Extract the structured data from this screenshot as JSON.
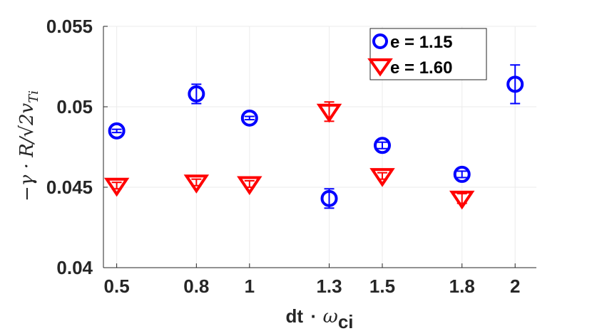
{
  "chart_data": {
    "type": "scatter",
    "x": [
      0.5,
      0.8,
      1,
      1.3,
      1.5,
      1.8,
      2
    ],
    "xticks": [
      "0.5",
      "0.8",
      "1",
      "1.3",
      "1.5",
      "1.8",
      "2"
    ],
    "yticks": [
      "0.04",
      "0.045",
      "0.05",
      "0.055"
    ],
    "xlim": [
      0.45,
      2.08
    ],
    "ylim": [
      0.04,
      0.055
    ],
    "grid": true,
    "legend_position": "top-right",
    "xlabel": {
      "main": "dt",
      "dot": "·",
      "omega": "ω",
      "subscript": "ci"
    },
    "ylabel": "−γ · R/√2v",
    "ylabel_sub": "Ti",
    "series": [
      {
        "name": "e = 1.15",
        "marker": "circle",
        "color": "#0000ff",
        "points": [
          {
            "x": 0.5,
            "y": 0.0485,
            "err": 0.0001
          },
          {
            "x": 0.8,
            "y": 0.0508,
            "err": 0.0006
          },
          {
            "x": 1,
            "y": 0.0493,
            "err": 0.0001
          },
          {
            "x": 1.3,
            "y": 0.0443,
            "err": 0.0006
          },
          {
            "x": 1.5,
            "y": 0.0476,
            "err": 0.0002
          },
          {
            "x": 1.8,
            "y": 0.0458,
            "err": 0.0002
          },
          {
            "x": 2,
            "y": 0.0514,
            "err": 0.0012
          }
        ]
      },
      {
        "name": "e = 1.60",
        "marker": "triangle-down",
        "color": "#ff0000",
        "points": [
          {
            "x": 0.5,
            "y": 0.0451,
            "err": 0.0002
          },
          {
            "x": 0.8,
            "y": 0.0453,
            "err": 0.0002
          },
          {
            "x": 1,
            "y": 0.0452,
            "err": 0.0002
          },
          {
            "x": 1.3,
            "y": 0.0497,
            "err": 0.0006
          },
          {
            "x": 1.5,
            "y": 0.0457,
            "err": 0.0002
          },
          {
            "x": 1.8,
            "y": 0.0443,
            "err": 0.0003
          }
        ]
      }
    ]
  }
}
